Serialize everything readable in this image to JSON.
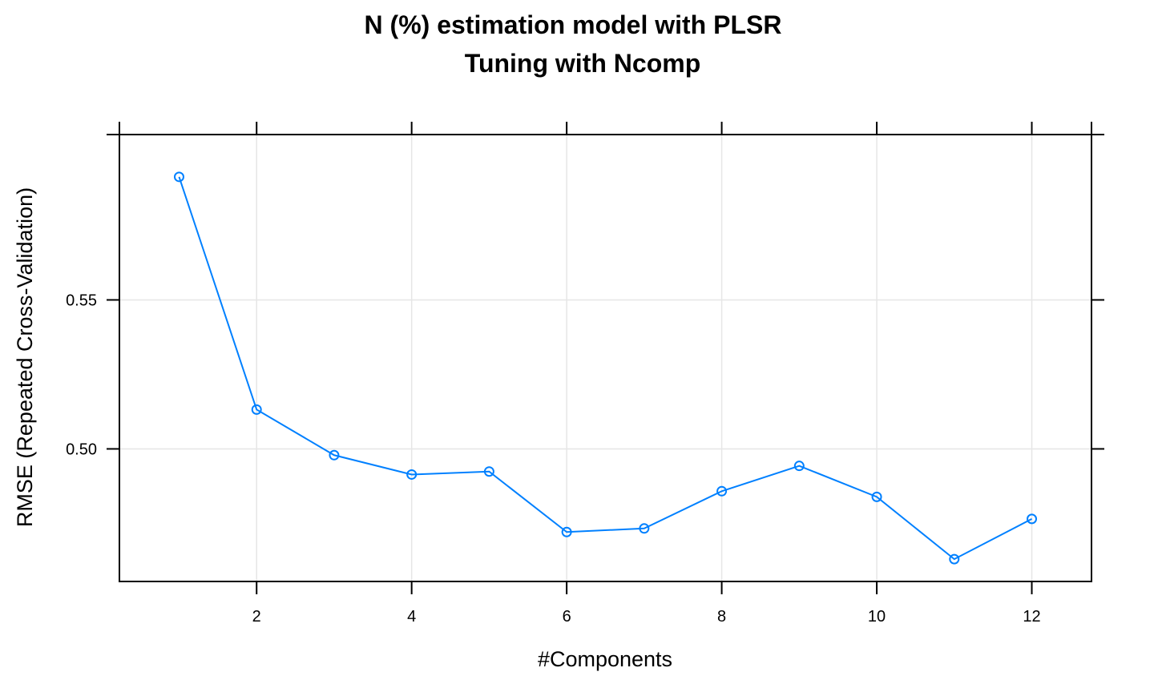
{
  "chart_data": {
    "type": "line",
    "title": [
      "N (%) estimation model with PLSR",
      "Tuning with Ncomp"
    ],
    "xlabel": "#Components",
    "ylabel": "RMSE (Repeated Cross-Validation)",
    "xlim": [
      0.23,
      12.77
    ],
    "ylim": [
      0.4555,
      0.6055
    ],
    "x_ticks": [
      2,
      4,
      6,
      8,
      10,
      12
    ],
    "x_tick_labels": [
      "2",
      "4",
      "6",
      "8",
      "10",
      "12"
    ],
    "y_ticks": [
      0.5,
      0.55
    ],
    "y_tick_labels": [
      "0.50",
      "0.55"
    ],
    "grid": true,
    "legend": "none",
    "series": [
      {
        "color": "#0080ff",
        "x": [
          1,
          2,
          3,
          4,
          5,
          6,
          7,
          8,
          9,
          10,
          11,
          12
        ],
        "values": [
          0.5913,
          0.5132,
          0.4979,
          0.4914,
          0.4924,
          0.4721,
          0.4733,
          0.4858,
          0.4943,
          0.4839,
          0.463,
          0.4765
        ]
      }
    ]
  }
}
